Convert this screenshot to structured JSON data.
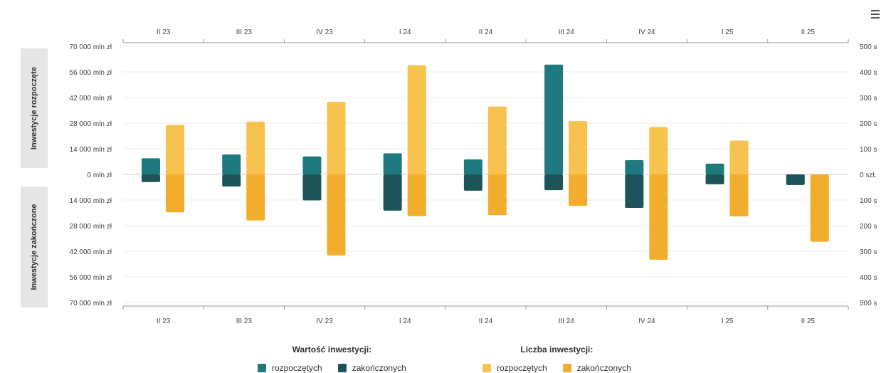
{
  "chart_data": {
    "type": "bar",
    "categories": [
      "II 23",
      "III 23",
      "IV 23",
      "I 24",
      "II 24",
      "III 24",
      "IV 24",
      "I 25",
      "II 25"
    ],
    "left_axis": {
      "ticks": [
        "70 000 mln zł",
        "56 000 mln zł",
        "42 000 mln zł",
        "28 000 mln zł",
        "14 000 mln zł",
        "0 mln zł",
        "14 000 mln zł",
        "28 000 mln zł",
        "42 000 mln zł",
        "56 000 mln zł",
        "70 000 mln zł"
      ],
      "range": [
        -70000,
        70000
      ],
      "upper_label": "Inwestycje rozpoczęte",
      "lower_label": "Inwestycje zakończone"
    },
    "right_axis": {
      "ticks": [
        "500 s",
        "400 s",
        "300 s",
        "200 s",
        "100 s",
        "0 szt.",
        "100 s",
        "200 s",
        "300 s",
        "400 s",
        "500 s"
      ],
      "range": [
        -500,
        500
      ]
    },
    "grid": true,
    "legend_position": "bottom",
    "legend_groups": [
      {
        "title": "Wartość inwestycji:",
        "items": [
          "rozpoczętych",
          "zakończonych"
        ]
      },
      {
        "title": "Liczba inwestycji:",
        "items": [
          "rozpoczętych",
          "zakończonych"
        ]
      }
    ],
    "series": [
      {
        "name": "Wartość inwestycji: rozpoczętych",
        "axis": "left",
        "color": "#1f7a80",
        "values": [
          8800,
          10900,
          9800,
          11500,
          8200,
          60000,
          7800,
          5900,
          0
        ]
      },
      {
        "name": "Wartość inwestycji: zakończonych",
        "axis": "left",
        "color": "#1d5459",
        "values": [
          -4200,
          -6600,
          -14200,
          -19800,
          -8900,
          -8600,
          -18300,
          -5400,
          -5800
        ]
      },
      {
        "name": "Liczba inwestycji: rozpoczętych",
        "axis": "right",
        "color": "#f7c24d",
        "values": [
          193,
          206,
          283,
          426,
          265,
          208,
          185,
          132,
          0
        ]
      },
      {
        "name": "Liczba inwestycji: zakończonych",
        "axis": "right",
        "color": "#f2ad2c",
        "values": [
          -148,
          -180,
          -316,
          -163,
          -159,
          -123,
          -333,
          -164,
          -263
        ]
      }
    ]
  },
  "ui": {
    "menu_icon": "hamburger-menu-icon"
  }
}
